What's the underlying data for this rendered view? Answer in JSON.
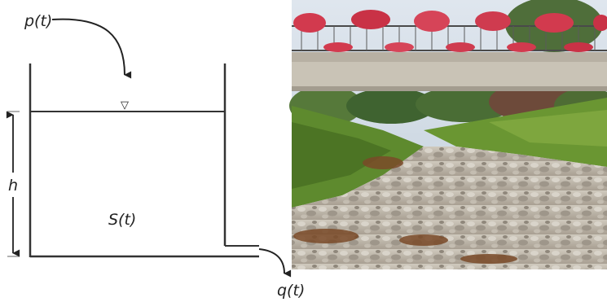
{
  "diagram": {
    "labels": {
      "inflow": "p(t)",
      "depth": "h",
      "storage": "S(t)",
      "outflow": "q(t)"
    },
    "water_level_symbol": "▽"
  },
  "photo": {
    "subject": "dry gravel riverbed under a bridge with flower boxes",
    "colors": {
      "sky": "#cfd9e4",
      "bridge": "#c9c3b6",
      "grass": "#5e8a2e",
      "gravel": "#b9b2a6",
      "flowers": "#d23a4e"
    }
  }
}
